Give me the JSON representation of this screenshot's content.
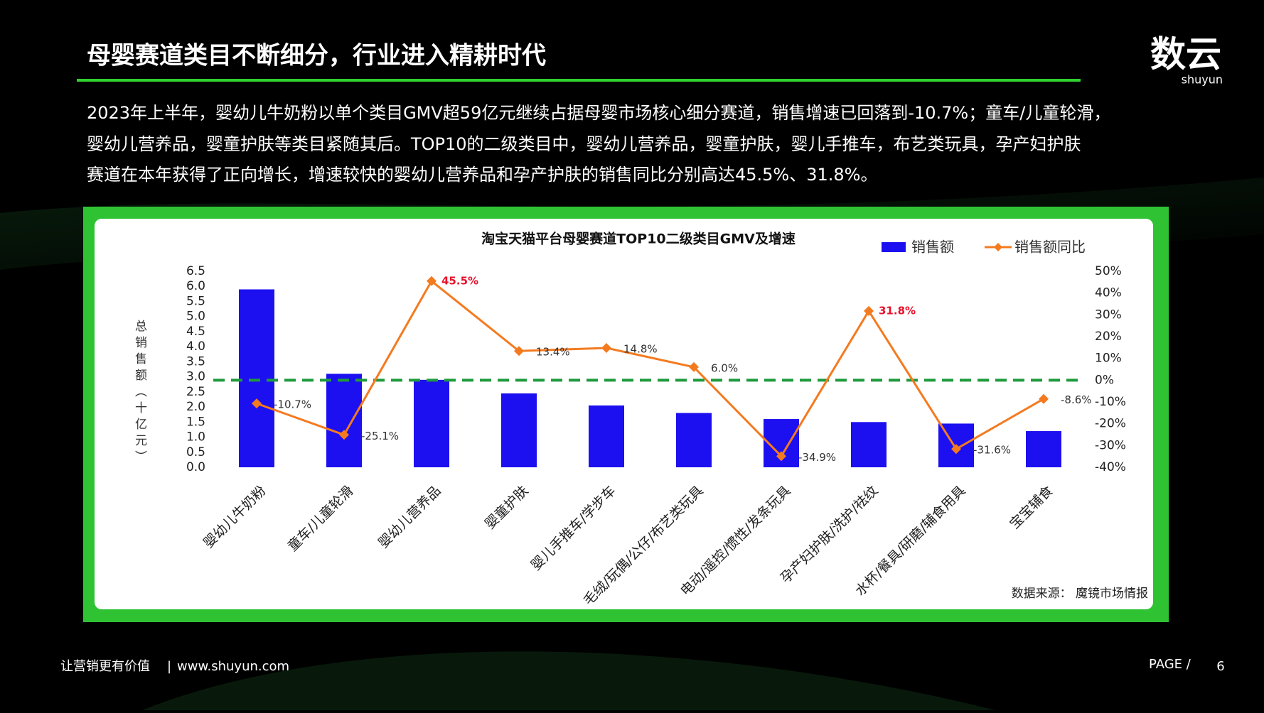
{
  "header": {
    "title": "母婴赛道类目不断细分，行业进入精耕时代",
    "logo": "数云",
    "logo_sub": "shuyun"
  },
  "paragraph": [
    "2023年上半年，婴幼儿牛奶粉以单个类目GMV超59亿元继续占据母婴市场核心细分赛道，销售增速已回落到-10.7%；童车/儿童轮滑，",
    "婴幼儿营养品，婴童护肤等类目紧随其后。TOP10的二级类目中，婴幼儿营养品，婴童护肤，婴儿手推车，布艺类玩具，孕产妇护肤",
    "赛道在本年获得了正向增长，增速较快的婴幼儿营养品和孕产护肤的销售同比分别高达45.5%、31.8%。"
  ],
  "chart_data": {
    "type": "bar",
    "title": "淘宝天猫平台母婴赛道TOP10二级类目GMV及增速",
    "ylabel": "总销售额（十亿元）",
    "categories": [
      "婴幼儿牛奶粉",
      "童车/儿童轮滑",
      "婴幼儿营养品",
      "婴童护肤",
      "婴儿手推车/学步车",
      "毛绒/玩偶/公仔/布艺类玩具",
      "电动/遥控/惯性/发条玩具",
      "孕产妇护肤/洗护/祛纹",
      "水杯/餐具/研磨/辅食用具",
      "宝宝辅食"
    ],
    "series": [
      {
        "name": "销售额",
        "type": "bar",
        "color": "#1c10f0",
        "values": [
          5.9,
          3.1,
          2.9,
          2.45,
          2.05,
          1.8,
          1.6,
          1.5,
          1.45,
          1.2
        ]
      },
      {
        "name": "销售额同比",
        "type": "line",
        "axis": "y2",
        "color": "#f47a1f",
        "values": [
          -10.7,
          -25.1,
          45.5,
          13.4,
          14.8,
          6.0,
          -34.9,
          31.8,
          -31.6,
          -8.6
        ],
        "value_labels": [
          "-10.7%",
          "-25.1%",
          "45.5%",
          "13.4%",
          "14.8%",
          "6.0%",
          "-34.9%",
          "31.8%",
          "-31.6%",
          "-8.6%"
        ],
        "value_label_colors": [
          "#333333",
          "#333333",
          "#e8102a",
          "#333333",
          "#333333",
          "#333333",
          "#333333",
          "#e8102a",
          "#333333",
          "#333333"
        ]
      }
    ],
    "ylim": [
      0,
      6.5
    ],
    "yticks": [
      {
        "value": 0,
        "label": "0.0"
      },
      0.5,
      {
        "value": 1,
        "label": "1.0"
      },
      1.5,
      {
        "value": 2,
        "label": "2.0"
      },
      2.5,
      {
        "value": 3,
        "label": "3.0"
      },
      3.5,
      {
        "value": 4,
        "label": "4.0"
      },
      4.5,
      {
        "value": 5,
        "label": "5.0"
      },
      5.5,
      {
        "value": 6,
        "label": "6.0"
      },
      6.5
    ],
    "y2lim": [
      -40,
      50
    ],
    "y2ticks": [
      {
        "value": -40,
        "label": "-40%"
      },
      {
        "value": -30,
        "label": "-30%"
      },
      {
        "value": -20,
        "label": "-20%"
      },
      {
        "value": -10,
        "label": "-10%"
      },
      {
        "value": 0,
        "label": "0%"
      },
      {
        "value": 10,
        "label": "10%"
      },
      {
        "value": 20,
        "label": "20%"
      },
      {
        "value": 30,
        "label": "30%"
      },
      {
        "value": 40,
        "label": "40%"
      },
      {
        "value": 50,
        "label": "50%"
      }
    ],
    "reference_line": {
      "value": 0,
      "axis": "y2",
      "color": "#1f9a3c"
    },
    "legend": "top-right",
    "source": "数据来源：  魔镜市场情报"
  },
  "footer": {
    "slogan": "让营销更有价值",
    "url": "www.shuyun.com",
    "page_label": "PAGE  /",
    "page_number": "6"
  }
}
